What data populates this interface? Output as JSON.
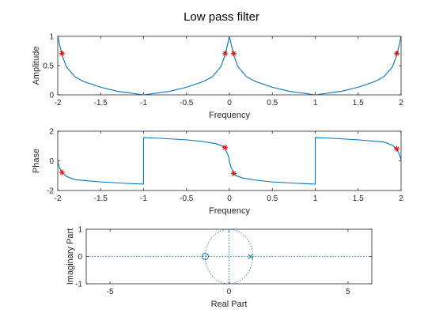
{
  "figure": {
    "title": "Low pass filter"
  },
  "chart_data": [
    {
      "type": "line",
      "title": "Low pass filter",
      "xlabel": "Frequency",
      "ylabel": "Amplitude",
      "xlim": [
        -2,
        2
      ],
      "ylim": [
        0,
        1
      ],
      "xticks": [
        "-2",
        "-1.5",
        "-1",
        "-0.5",
        "0",
        "0.5",
        "1",
        "1.5",
        "2"
      ],
      "yticks": [
        "0",
        "0.5",
        "1"
      ],
      "grid": false,
      "series": [
        {
          "color": "#0072BD",
          "x": [
            -2.0,
            -1.98,
            -1.95,
            -1.9,
            -1.8,
            -1.7,
            -1.5,
            -1.3,
            -1.0,
            -0.7,
            -0.5,
            -0.3,
            -0.2,
            -0.1,
            -0.05,
            -0.02,
            0.0,
            0.02,
            0.05,
            0.1,
            0.2,
            0.3,
            0.5,
            0.7,
            1.0,
            1.3,
            1.5,
            1.7,
            1.8,
            1.9,
            1.95,
            1.98,
            2.0
          ],
          "y": [
            1.0,
            0.87,
            0.68,
            0.48,
            0.31,
            0.23,
            0.13,
            0.06,
            0.0,
            0.06,
            0.13,
            0.23,
            0.31,
            0.48,
            0.68,
            0.87,
            1.0,
            0.87,
            0.68,
            0.48,
            0.31,
            0.23,
            0.13,
            0.06,
            0.0,
            0.06,
            0.13,
            0.23,
            0.31,
            0.48,
            0.68,
            0.87,
            1.0
          ]
        }
      ],
      "markers": {
        "symbol": "*",
        "color": "#ff0000",
        "x": [
          -1.95,
          -0.05,
          0.05,
          1.95
        ],
        "y": [
          0.707,
          0.707,
          0.707,
          0.707
        ]
      }
    },
    {
      "type": "line",
      "xlabel": "Frequency",
      "ylabel": "Phase",
      "xlim": [
        -2,
        2
      ],
      "ylim": [
        -2,
        2
      ],
      "xticks": [
        "-2",
        "-1.5",
        "-1",
        "-0.5",
        "0",
        "0.5",
        "1",
        "1.5",
        "2"
      ],
      "yticks": [
        "-2",
        "0",
        "2"
      ],
      "grid": false,
      "series": [
        {
          "color": "#0072BD",
          "x": [
            -2.0,
            -1.98,
            -1.95,
            -1.9,
            -1.8,
            -1.5,
            -1.2,
            -1.0,
            -1.0,
            -0.8,
            -0.5,
            -0.3,
            -0.15,
            -0.08,
            -0.05,
            -0.02,
            0.0,
            0.0,
            0.02,
            0.05,
            0.08,
            0.15,
            0.3,
            0.5,
            0.8,
            1.0,
            1.0,
            1.2,
            1.5,
            1.8,
            1.9,
            1.95,
            1.98,
            2.0
          ],
          "y": [
            -0.05,
            -0.45,
            -0.78,
            -1.05,
            -1.27,
            -1.42,
            -1.52,
            -1.57,
            1.57,
            1.52,
            1.42,
            1.3,
            1.15,
            1.0,
            0.79,
            0.45,
            0.05,
            -0.05,
            -0.45,
            -0.79,
            -1.0,
            -1.15,
            -1.3,
            -1.42,
            -1.52,
            -1.57,
            1.57,
            1.52,
            1.42,
            1.27,
            1.05,
            0.78,
            0.45,
            0.05
          ]
        }
      ],
      "markers": {
        "symbol": "*",
        "color": "#ff0000",
        "x": [
          -1.95,
          -0.05,
          0.05,
          1.95
        ],
        "y": [
          -0.78,
          0.9,
          -0.85,
          0.82
        ]
      }
    },
    {
      "type": "scatter",
      "xlabel": "Real Part",
      "ylabel": "Imaginary Part",
      "xlim": [
        -6,
        6
      ],
      "ylim": [
        -1,
        1
      ],
      "xticks": [
        "-5",
        "0",
        "5"
      ],
      "yticks": [
        "-1",
        "0",
        "1"
      ],
      "grid": false,
      "unit_circle": true,
      "color": "#0072BD",
      "zeros": [
        {
          "re": -1.0,
          "im": 0.0
        }
      ],
      "poles": [
        {
          "re": 0.9,
          "im": 0.0
        }
      ]
    }
  ]
}
